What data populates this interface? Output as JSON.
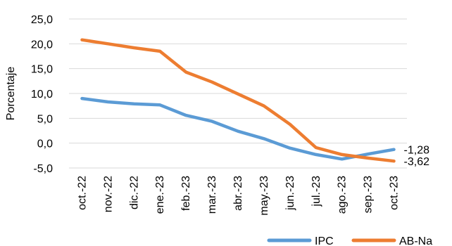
{
  "chart_data": {
    "type": "line",
    "title": "",
    "xlabel": "",
    "ylabel": "Porcentaje",
    "ylim": [
      -5,
      25
    ],
    "yticks": [
      -5,
      0,
      5,
      10,
      15,
      20,
      25
    ],
    "ytick_labels": [
      "-5,0",
      "0,0",
      "5,0",
      "10,0",
      "15,0",
      "20,0",
      "25,0"
    ],
    "grid": "horizontal",
    "legend_position": "bottom-right",
    "categories": [
      "oct.-22",
      "nov.-22",
      "dic.-22",
      "ene.-23",
      "feb.-23",
      "mar.-23",
      "abr.-23",
      "may.-23",
      "jun.-23",
      "jul.-23",
      "ago.-23",
      "sep.-23",
      "oct.-23"
    ],
    "series": [
      {
        "name": "IPC",
        "color": "#5B9BD5",
        "values": [
          9.0,
          8.3,
          7.9,
          7.7,
          5.6,
          4.4,
          2.4,
          0.9,
          -1.0,
          -2.3,
          -3.2,
          -2.2,
          -1.28
        ]
      },
      {
        "name": "AB-Na",
        "color": "#ED7D31",
        "values": [
          20.8,
          20.0,
          19.2,
          18.5,
          14.3,
          12.3,
          9.9,
          7.5,
          3.8,
          -0.9,
          -2.3,
          -3.0,
          -3.62
        ]
      }
    ],
    "annotations": [
      {
        "series": 0,
        "index": 12,
        "text": "-1,28"
      },
      {
        "series": 1,
        "index": 12,
        "text": "-3,62"
      }
    ]
  }
}
